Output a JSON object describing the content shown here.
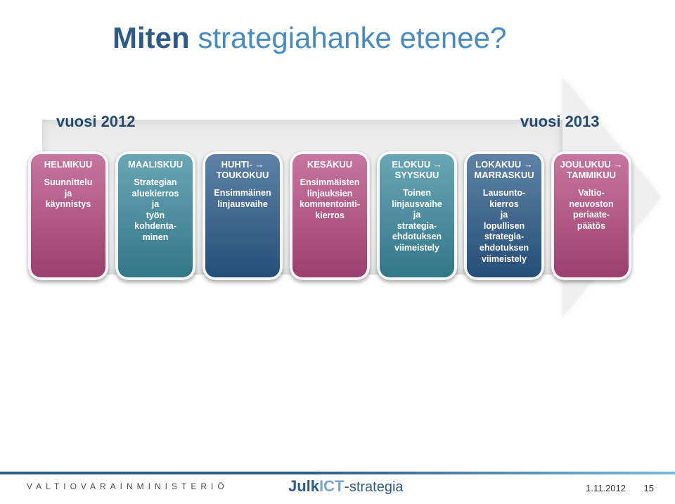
{
  "title": {
    "word1": "Miten",
    "word2": "strategiahanke etenee?",
    "color1": "#2f5c87",
    "color2": "#4a8bbf",
    "fontsize": 42
  },
  "years": {
    "left": "vuosi 2012",
    "right": "vuosi 2013",
    "color": "#254a6e",
    "fontsize": 22
  },
  "arrow": {
    "body_gradient_top": "#e8e8e8",
    "body_gradient_mid": "#f4f4f4",
    "body_gradient_bot": "#e8e8e8",
    "head_color": "#efefef"
  },
  "columns": [
    {
      "header": "HELMIKUU",
      "text": "Suunnittelu\nja\nkäynnistys",
      "bg": "#b54a80"
    },
    {
      "header": "MAALISKUU",
      "text": "Strategian\naluekierros\nja\ntyön\nkohdenta-\nminen",
      "bg": "#3a8a9e"
    },
    {
      "header": "HUHTI- →\nTOUKOKUU",
      "text": "Ensimmäinen\nlinjausvaihe",
      "bg": "#2b5a8a"
    },
    {
      "header": "KESÄKUU",
      "text": "Ensimmäisten\nlinjauksien\nkommentointi-\nkierros",
      "bg": "#b54a80"
    },
    {
      "header": "ELOKUU →\nSYYSKUU",
      "text": "Toinen\nlinjausvaihe\nja\nstrategia-\nehdotuksen\nviimeistely",
      "bg": "#3a8a9e"
    },
    {
      "header": "LOKAKUU →\nMARRASKUU",
      "text": "Lausunto-\nkierros\nja\nlopullisen\nstrategia-\nehdotuksen\nviimeistely",
      "bg": "#2b5a8a"
    },
    {
      "header": "JOULUKUU →\nTAMMIKUU",
      "text": "Valtio-\nneuvoston\nperiaate-\npäätös",
      "bg": "#b54a80"
    }
  ],
  "column_style": {
    "width": 114,
    "radius": 18,
    "inner_border": "#ffffff",
    "font_hdr": 13,
    "font_txt": 12.5,
    "text_color": "#ffffff"
  },
  "footer": {
    "ministry": "VALTIOVARAINMINISTERIÖ",
    "logo_julk": "Julk",
    "logo_ict": "ICT",
    "logo_dash": "-",
    "logo_strat": "strategia",
    "date": "1.11.2012",
    "page": "15",
    "bar_from": "#2e5b87",
    "bar_to": "#7bb8d9",
    "ministry_color": "#4a4a4a",
    "logo_color1": "#2f5c87",
    "logo_color2": "#7aa4c9"
  }
}
